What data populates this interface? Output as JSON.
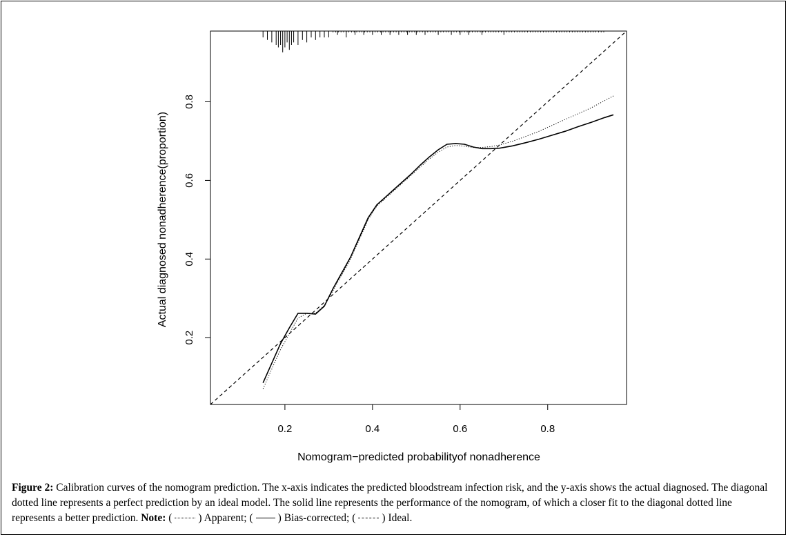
{
  "chart_data": {
    "type": "line",
    "title": "",
    "xlabel": "Nomogram−predicted probabilityof nonadherence",
    "ylabel": "Actual diagnosed nonadherence(proportion)",
    "xlim": [
      0.03,
      0.98
    ],
    "ylim": [
      0.03,
      0.98
    ],
    "x_ticks": [
      "0.2",
      "0.4",
      "0.6",
      "0.8"
    ],
    "x_tick_values": [
      0.2,
      0.4,
      0.6,
      0.8
    ],
    "y_ticks": [
      "0.2",
      "0.4",
      "0.6",
      "0.8"
    ],
    "y_tick_values": [
      0.2,
      0.4,
      0.6,
      0.8
    ],
    "series": [
      {
        "name": "Apparent",
        "style": "dotted",
        "x": [
          0.15,
          0.17,
          0.19,
          0.21,
          0.23,
          0.25,
          0.27,
          0.29,
          0.31,
          0.33,
          0.35,
          0.37,
          0.39,
          0.41,
          0.43,
          0.45,
          0.47,
          0.49,
          0.51,
          0.53,
          0.55,
          0.57,
          0.59,
          0.61,
          0.63,
          0.65,
          0.67,
          0.69,
          0.72,
          0.75,
          0.78,
          0.81,
          0.84,
          0.87,
          0.9,
          0.93,
          0.95
        ],
        "y": [
          0.07,
          0.12,
          0.17,
          0.21,
          0.25,
          0.262,
          0.262,
          0.282,
          0.32,
          0.36,
          0.4,
          0.45,
          0.5,
          0.535,
          0.555,
          0.575,
          0.595,
          0.615,
          0.635,
          0.655,
          0.672,
          0.685,
          0.689,
          0.687,
          0.684,
          0.684,
          0.686,
          0.69,
          0.7,
          0.712,
          0.725,
          0.74,
          0.755,
          0.77,
          0.785,
          0.803,
          0.815
        ]
      },
      {
        "name": "Bias-corrected",
        "style": "solid",
        "x": [
          0.15,
          0.17,
          0.19,
          0.21,
          0.23,
          0.25,
          0.27,
          0.29,
          0.31,
          0.33,
          0.35,
          0.37,
          0.39,
          0.41,
          0.43,
          0.45,
          0.47,
          0.49,
          0.51,
          0.53,
          0.55,
          0.57,
          0.59,
          0.61,
          0.63,
          0.65,
          0.67,
          0.69,
          0.72,
          0.75,
          0.78,
          0.81,
          0.84,
          0.87,
          0.9,
          0.93,
          0.95
        ],
        "y": [
          0.085,
          0.135,
          0.185,
          0.225,
          0.262,
          0.262,
          0.26,
          0.28,
          0.325,
          0.365,
          0.405,
          0.455,
          0.505,
          0.538,
          0.558,
          0.578,
          0.598,
          0.618,
          0.64,
          0.66,
          0.678,
          0.692,
          0.694,
          0.692,
          0.685,
          0.681,
          0.681,
          0.682,
          0.688,
          0.696,
          0.705,
          0.715,
          0.725,
          0.737,
          0.748,
          0.76,
          0.767
        ]
      },
      {
        "name": "Ideal",
        "style": "dashed",
        "x": [
          0.03,
          0.98
        ],
        "y": [
          0.03,
          0.98
        ]
      }
    ],
    "rug": {
      "x": [
        0.15,
        0.16,
        0.17,
        0.18,
        0.185,
        0.19,
        0.195,
        0.2,
        0.205,
        0.21,
        0.215,
        0.22,
        0.23,
        0.24,
        0.25,
        0.26,
        0.27,
        0.28,
        0.29,
        0.3,
        0.32,
        0.34,
        0.36,
        0.38,
        0.4,
        0.42,
        0.44,
        0.46,
        0.48,
        0.5,
        0.52,
        0.55,
        0.58,
        0.6,
        0.62,
        0.65,
        0.7
      ],
      "count": [
        2,
        3,
        4,
        5,
        6,
        5,
        8,
        6,
        4,
        7,
        5,
        4,
        5,
        3,
        4,
        2,
        3,
        2,
        2,
        2,
        1,
        2,
        1,
        1,
        1,
        1,
        1,
        1,
        1,
        1,
        1,
        1,
        1,
        1,
        1,
        1,
        1
      ]
    }
  },
  "caption": {
    "label": "Figure 2:",
    "text": " Calibration curves of the nomogram prediction. The x-axis indicates the predicted bloodstream infection risk, and the y-axis shows the actual diagnosed. The diagonal dotted line represents a perfect prediction by an ideal model. The solid line represents the performance of the nomogram, of which a closer fit to the diagonal dotted line represents a better prediction. ",
    "note_label": "Note:",
    "legend_apparent": "Apparent;",
    "legend_bias": "Bias-corrected;",
    "legend_ideal": "Ideal."
  }
}
